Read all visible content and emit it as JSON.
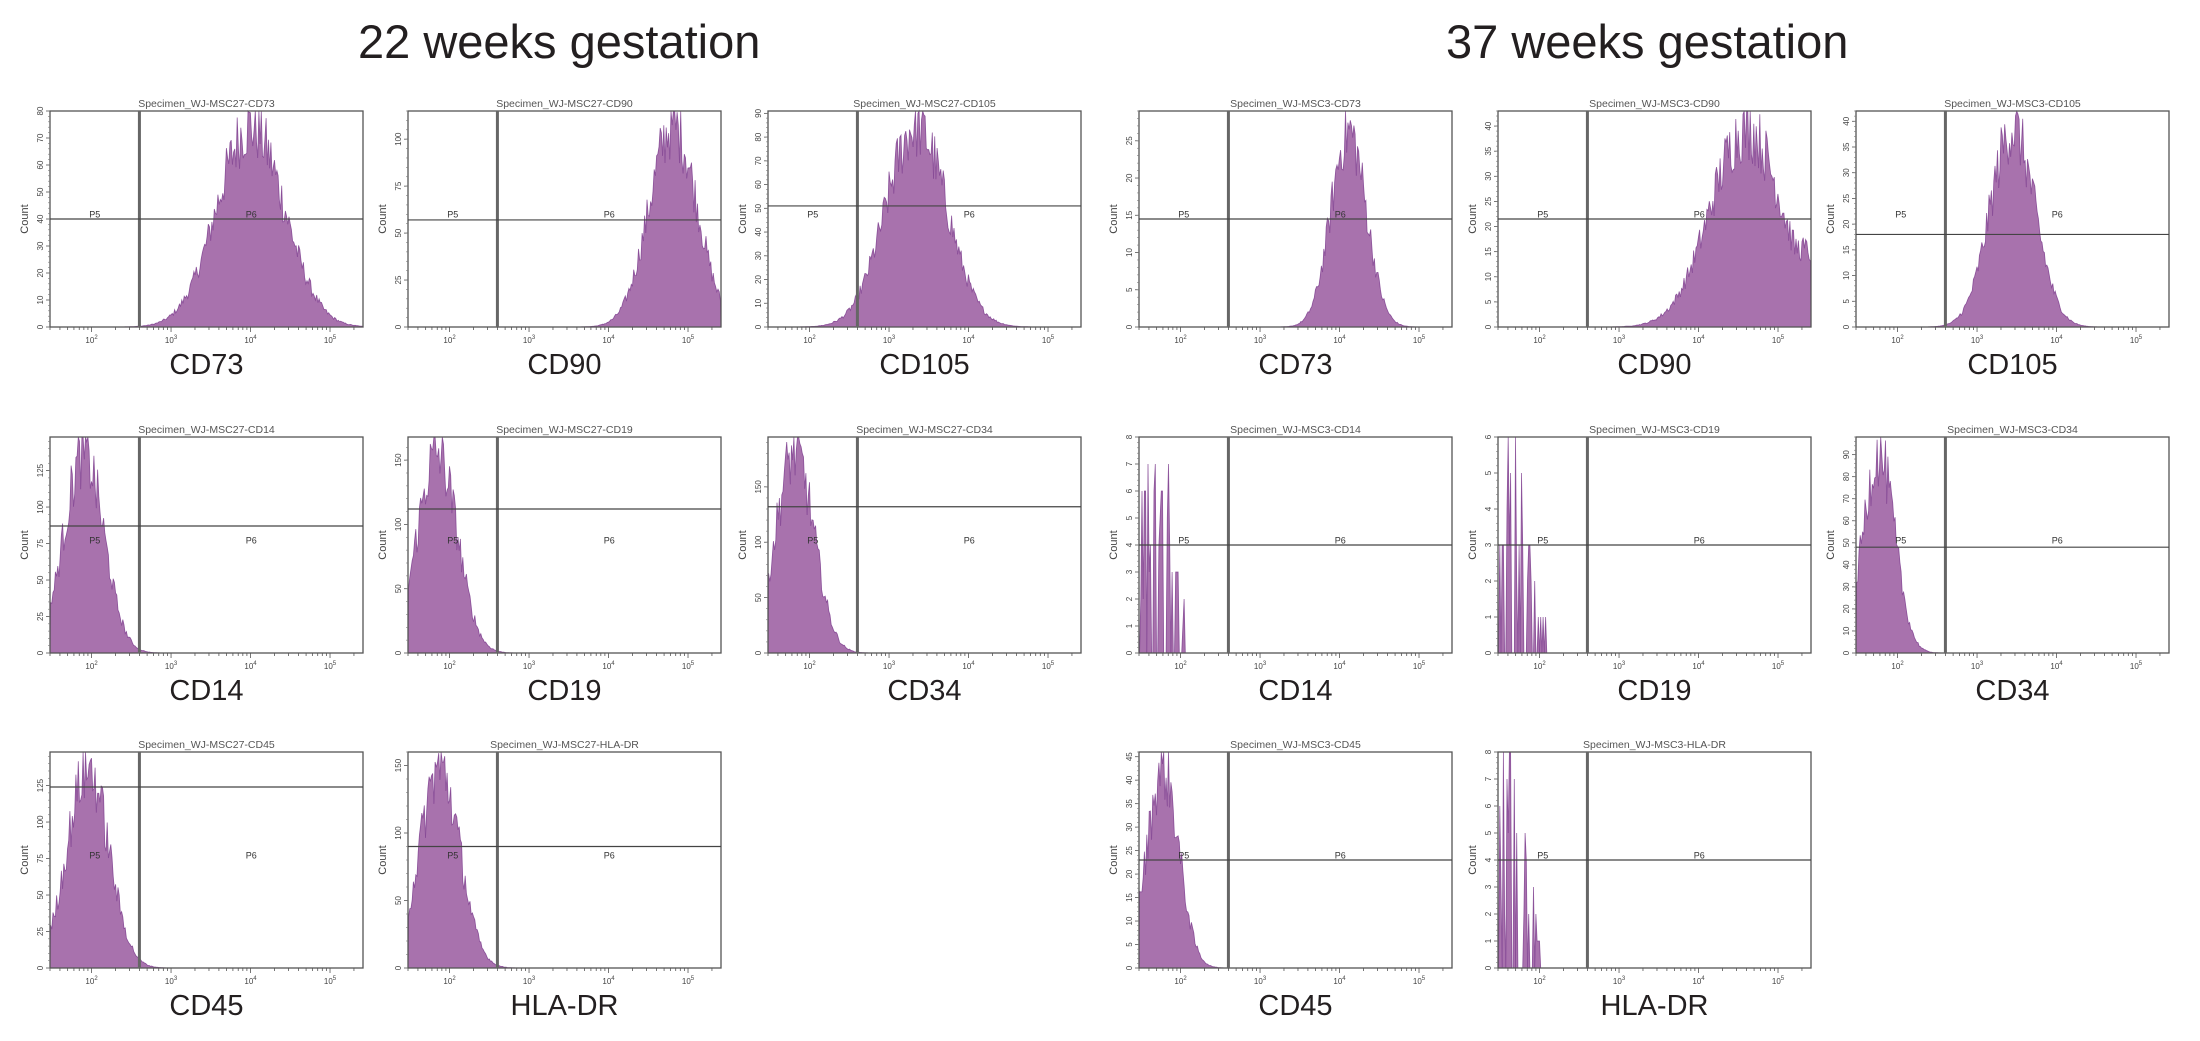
{
  "headings": {
    "left": "22 weeks gestation",
    "right": "37 weeks gestation"
  },
  "fill_color": "#a872ad",
  "edge_color": "#7b3a8c",
  "chart_data": [
    {
      "type": "area",
      "group": "22 weeks gestation",
      "title": "Specimen_WJ-MSC27-CD73",
      "marker": "CD73",
      "ylabel": "Count",
      "xscale": "log",
      "xlim": [
        30,
        260000
      ],
      "xticks": [
        "10^2",
        "10^3",
        "10^4",
        "10^5"
      ],
      "ylim": [
        0,
        80
      ],
      "yticks": [
        0,
        10,
        20,
        30,
        40,
        50,
        60,
        70,
        80
      ],
      "gate_x": 400,
      "gate_y": 40,
      "gates": [
        "P5",
        "P6"
      ],
      "peak_x": 10000,
      "peak_count": 79,
      "spread_decades": 0.42
    },
    {
      "type": "area",
      "group": "22 weeks gestation",
      "title": "Specimen_WJ-MSC27-CD90",
      "marker": "CD90",
      "ylabel": "Count",
      "xscale": "log",
      "xlim": [
        30,
        260000
      ],
      "xticks": [
        "10^2",
        "10^3",
        "10^4",
        "10^5"
      ],
      "ylim": [
        0,
        115
      ],
      "yticks": [
        0,
        25,
        50,
        75,
        100
      ],
      "gate_x": 400,
      "gate_y": 57,
      "gates": [
        "P5",
        "P6"
      ],
      "peak_x": 65000,
      "peak_count": 114,
      "spread_decades": 0.3
    },
    {
      "type": "area",
      "group": "22 weeks gestation",
      "title": "Specimen_WJ-MSC27-CD105",
      "marker": "CD105",
      "ylabel": "Count",
      "xscale": "log",
      "xlim": [
        30,
        260000
      ],
      "xticks": [
        "10^2",
        "10^3",
        "10^4",
        "10^5"
      ],
      "ylim": [
        0,
        91
      ],
      "yticks": [
        0,
        10,
        20,
        30,
        40,
        50,
        60,
        70,
        80,
        90
      ],
      "gate_x": 400,
      "gate_y": 51,
      "gates": [
        "P5",
        "P6"
      ],
      "peak_x": 2200,
      "peak_count": 90,
      "spread_decades": 0.38
    },
    {
      "type": "area",
      "group": "37 weeks gestation",
      "title": "Specimen_WJ-MSC3-CD73",
      "marker": "CD73",
      "ylabel": "Count",
      "xscale": "log",
      "xlim": [
        30,
        260000
      ],
      "xticks": [
        "10^2",
        "10^3",
        "10^4",
        "10^5"
      ],
      "ylim": [
        0,
        29
      ],
      "yticks": [
        0,
        5,
        10,
        15,
        20,
        25
      ],
      "gate_x": 400,
      "gate_y": 14.5,
      "gates": [
        "P5",
        "P6"
      ],
      "peak_x": 13000,
      "peak_count": 28,
      "spread_decades": 0.22
    },
    {
      "type": "area",
      "group": "37 weeks gestation",
      "title": "Specimen_WJ-MSC3-CD90",
      "marker": "CD90",
      "ylabel": "Count",
      "xscale": "log",
      "xlim": [
        30,
        260000
      ],
      "xticks": [
        "10^2",
        "10^3",
        "10^4",
        "10^5"
      ],
      "ylim": [
        0,
        43
      ],
      "yticks": [
        0,
        5,
        10,
        15,
        20,
        25,
        30,
        35,
        40
      ],
      "gate_x": 400,
      "gate_y": 21.5,
      "gates": [
        "P5",
        "P6"
      ],
      "peak_x": 40000,
      "peak_count": 42,
      "spread_decades": 0.45
    },
    {
      "type": "area",
      "group": "37 weeks gestation",
      "title": "Specimen_WJ-MSC3-CD105",
      "marker": "CD105",
      "ylabel": "Count",
      "xscale": "log",
      "xlim": [
        30,
        260000
      ],
      "xticks": [
        "10^2",
        "10^3",
        "10^4",
        "10^5"
      ],
      "ylim": [
        0,
        42
      ],
      "yticks": [
        0,
        5,
        10,
        15,
        20,
        25,
        30,
        35,
        40
      ],
      "gate_x": 400,
      "gate_y": 18,
      "gates": [
        "P5",
        "P6"
      ],
      "peak_x": 2800,
      "peak_count": 41,
      "spread_decades": 0.28
    },
    {
      "type": "area",
      "group": "22 weeks gestation",
      "title": "Specimen_WJ-MSC27-CD14",
      "marker": "CD14",
      "ylabel": "Count",
      "xscale": "log",
      "xlim": [
        30,
        260000
      ],
      "xticks": [
        "10^2",
        "10^3",
        "10^4",
        "10^5"
      ],
      "ylim": [
        0,
        148
      ],
      "yticks": [
        0,
        25,
        50,
        75,
        100,
        125
      ],
      "gate_x": 400,
      "gate_y": 87,
      "gates": [
        "P5",
        "P6"
      ],
      "peak_x": 80,
      "peak_count": 145,
      "spread_decades": 0.25
    },
    {
      "type": "area",
      "group": "22 weeks gestation",
      "title": "Specimen_WJ-MSC27-CD19",
      "marker": "CD19",
      "ylabel": "Count",
      "xscale": "log",
      "xlim": [
        30,
        260000
      ],
      "xticks": [
        "10^2",
        "10^3",
        "10^4",
        "10^5"
      ],
      "ylim": [
        0,
        168
      ],
      "yticks": [
        0,
        50,
        100,
        150
      ],
      "gate_x": 400,
      "gate_y": 112,
      "gates": [
        "P5",
        "P6"
      ],
      "peak_x": 70,
      "peak_count": 165,
      "spread_decades": 0.25
    },
    {
      "type": "area",
      "group": "22 weeks gestation",
      "title": "Specimen_WJ-MSC27-CD34",
      "marker": "CD34",
      "ylabel": "Count",
      "xscale": "log",
      "xlim": [
        30,
        260000
      ],
      "xticks": [
        "10^2",
        "10^3",
        "10^4",
        "10^5"
      ],
      "ylim": [
        0,
        195
      ],
      "yticks": [
        0,
        50,
        100,
        150
      ],
      "gate_x": 400,
      "gate_y": 132,
      "gates": [
        "P5",
        "P6"
      ],
      "peak_x": 65,
      "peak_count": 193,
      "spread_decades": 0.24
    },
    {
      "type": "area",
      "group": "37 weeks gestation",
      "title": "Specimen_WJ-MSC3-CD14",
      "marker": "CD14",
      "ylabel": "Count",
      "xscale": "log",
      "xlim": [
        30,
        260000
      ],
      "xticks": [
        "10^2",
        "10^3",
        "10^4",
        "10^5"
      ],
      "ylim": [
        0,
        8
      ],
      "yticks": [
        0,
        1,
        2,
        3,
        4,
        5,
        6,
        7,
        8
      ],
      "gate_x": 400,
      "gate_y": 4,
      "gates": [
        "P5",
        "P6"
      ],
      "peak_x": 50,
      "peak_count": 8,
      "spread_decades": 0.18,
      "sparse": true
    },
    {
      "type": "area",
      "group": "37 weeks gestation",
      "title": "Specimen_WJ-MSC3-CD19",
      "marker": "CD19",
      "ylabel": "Count",
      "xscale": "log",
      "xlim": [
        30,
        260000
      ],
      "xticks": [
        "10^2",
        "10^3",
        "10^4",
        "10^5"
      ],
      "ylim": [
        0,
        6
      ],
      "yticks": [
        0,
        1,
        2,
        3,
        4,
        5,
        6
      ],
      "gate_x": 400,
      "gate_y": 3,
      "gates": [
        "P5",
        "P6"
      ],
      "peak_x": 50,
      "peak_count": 6,
      "spread_decades": 0.18,
      "sparse": true
    },
    {
      "type": "area",
      "group": "37 weeks gestation",
      "title": "Specimen_WJ-MSC3-CD34",
      "marker": "CD34",
      "ylabel": "Count",
      "xscale": "log",
      "xlim": [
        30,
        260000
      ],
      "xticks": [
        "10^2",
        "10^3",
        "10^4",
        "10^5"
      ],
      "ylim": [
        0,
        98
      ],
      "yticks": [
        0,
        10,
        20,
        30,
        40,
        50,
        60,
        70,
        80,
        90
      ],
      "gate_x": 400,
      "gate_y": 48,
      "gates": [
        "P5",
        "P6"
      ],
      "peak_x": 58,
      "peak_count": 96,
      "spread_decades": 0.2
    },
    {
      "type": "area",
      "group": "22 weeks gestation",
      "title": "Specimen_WJ-MSC27-CD45",
      "marker": "CD45",
      "ylabel": "Count",
      "xscale": "log",
      "xlim": [
        30,
        260000
      ],
      "xticks": [
        "10^2",
        "10^3",
        "10^4",
        "10^5"
      ],
      "ylim": [
        0,
        148
      ],
      "yticks": [
        0,
        25,
        50,
        75,
        100,
        125
      ],
      "gate_x": 400,
      "gate_y": 124,
      "gates": [
        "P5",
        "P6"
      ],
      "peak_x": 90,
      "peak_count": 146,
      "spread_decades": 0.26
    },
    {
      "type": "area",
      "group": "22 weeks gestation",
      "title": "Specimen_WJ-MSC27-HLA-DR",
      "marker": "HLA-DR",
      "ylabel": "Count",
      "xscale": "log",
      "xlim": [
        30,
        260000
      ],
      "xticks": [
        "10^2",
        "10^3",
        "10^4",
        "10^5"
      ],
      "ylim": [
        0,
        160
      ],
      "yticks": [
        0,
        50,
        100,
        150
      ],
      "gate_x": 400,
      "gate_y": 90,
      "gates": [
        "P5",
        "P6"
      ],
      "peak_x": 75,
      "peak_count": 158,
      "spread_decades": 0.25
    },
    {
      "type": "area",
      "group": "37 weeks gestation",
      "title": "Specimen_WJ-MSC3-CD45",
      "marker": "CD45",
      "ylabel": "Count",
      "xscale": "log",
      "xlim": [
        30,
        260000
      ],
      "xticks": [
        "10^2",
        "10^3",
        "10^4",
        "10^5"
      ],
      "ylim": [
        0,
        46
      ],
      "yticks": [
        0,
        5,
        10,
        15,
        20,
        25,
        30,
        35,
        40,
        45
      ],
      "gate_x": 400,
      "gate_y": 23,
      "gates": [
        "P5",
        "P6"
      ],
      "peak_x": 60,
      "peak_count": 45,
      "spread_decades": 0.2
    },
    {
      "type": "area",
      "group": "37 weeks gestation",
      "title": "Specimen_WJ-MSC3-HLA-DR",
      "marker": "HLA-DR",
      "ylabel": "Count",
      "xscale": "log",
      "xlim": [
        30,
        260000
      ],
      "xticks": [
        "10^2",
        "10^3",
        "10^4",
        "10^5"
      ],
      "ylim": [
        0,
        8
      ],
      "yticks": [
        0,
        1,
        2,
        3,
        4,
        5,
        6,
        7,
        8
      ],
      "gate_x": 400,
      "gate_y": 4,
      "gates": [
        "P5",
        "P6"
      ],
      "peak_x": 45,
      "peak_count": 8,
      "spread_decades": 0.18,
      "sparse": true
    }
  ]
}
